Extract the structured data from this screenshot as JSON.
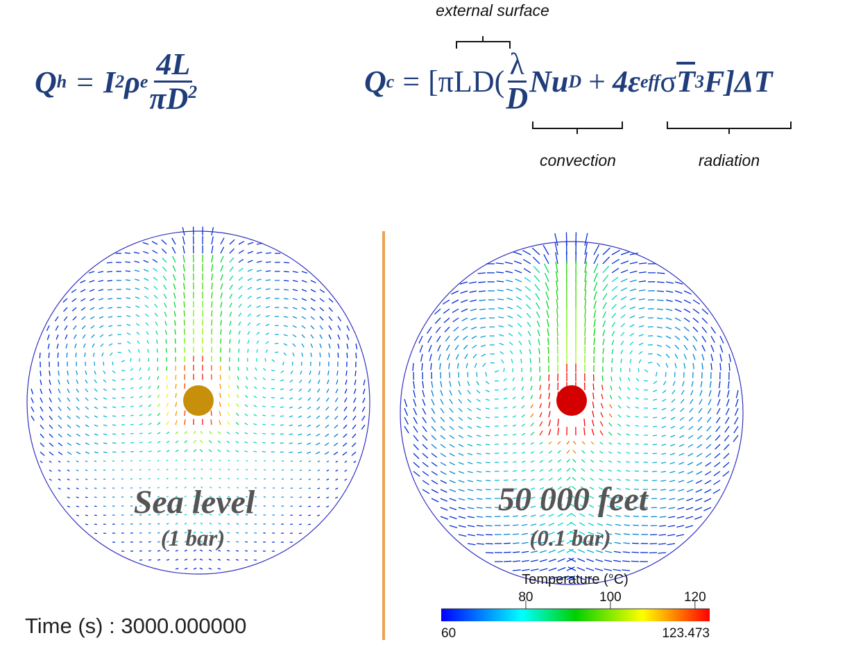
{
  "equations": {
    "heat": {
      "lhs": "Q",
      "lhs_sub": "h",
      "eq": "=",
      "i": "I",
      "i_sup": "2",
      "rho": "ρ",
      "rho_sub": "e",
      "num": "4L",
      "den": "πD",
      "den_sup": "2"
    },
    "cooling": {
      "lhs": "Q",
      "lhs_sub": "c",
      "eq": "=",
      "open": "[πLD(",
      "num": "λ",
      "den": "D",
      "nu": "Nu",
      "nu_sub": "D",
      "plus": "+",
      "four": "4ε",
      "eps_sub": "eff",
      "sigma": "σ",
      "t": "T",
      "t_sup": "3",
      "close": "F]ΔT"
    },
    "annotations": {
      "external": "external surface",
      "convection": "convection",
      "radiation": "radiation"
    }
  },
  "panels": [
    {
      "title": "Sea level",
      "subtitle": "(1 bar)"
    },
    {
      "title": "50 000 feet",
      "subtitle": "(0.1 bar)"
    }
  ],
  "time_label": "Time (s) : 3000.000000",
  "colorbar": {
    "title": "Temperature (°C)",
    "range": [
      60,
      123.473
    ],
    "ticks": [
      80,
      100,
      120
    ]
  }
}
